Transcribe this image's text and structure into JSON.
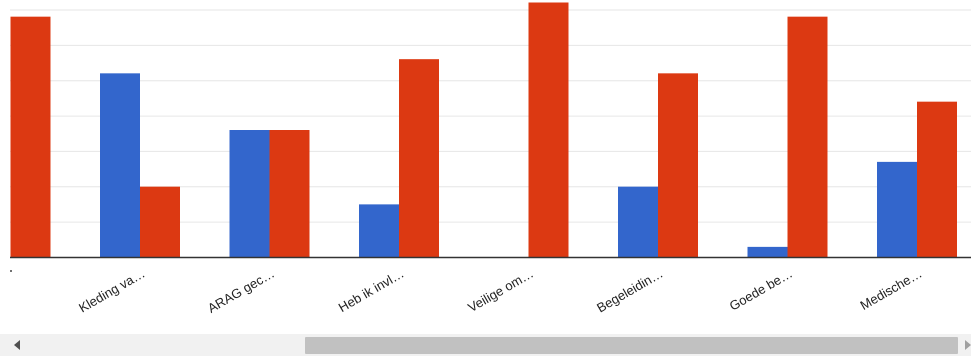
{
  "chart_data": {
    "type": "bar",
    "title": "",
    "xlabel": "",
    "ylabel": "",
    "categories": [
      "",
      "Kleding va…",
      "ARAG gec…",
      "Heb ik invl…",
      "Veilige om…",
      "Begeleidin…",
      "Goede be…",
      "Medische…"
    ],
    "series": [
      {
        "color": "#3366cc",
        "values": [
          0,
          52,
          36,
          15,
          0,
          20,
          3,
          27
        ]
      },
      {
        "color": "#dc3912",
        "values": [
          68,
          20,
          36,
          56,
          72,
          52,
          68,
          44
        ]
      }
    ],
    "ylim": [
      0,
      72
    ],
    "grid": true,
    "legend": "none"
  },
  "scrollbar": {
    "left_arrow_icon": "triangle-left-icon",
    "right_arrow_icon": "triangle-right-icon"
  }
}
